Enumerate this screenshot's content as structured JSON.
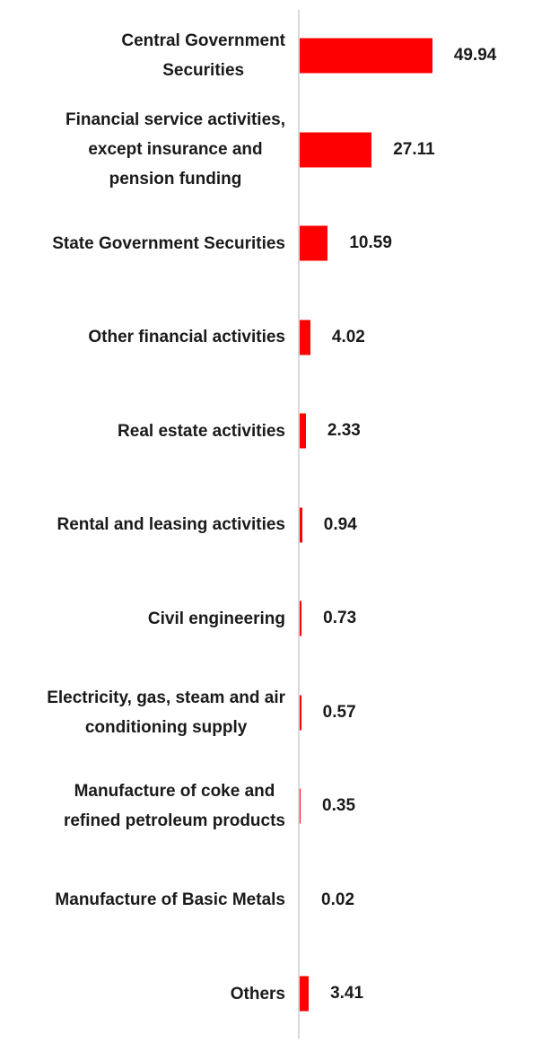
{
  "chart_data": {
    "type": "bar",
    "orientation": "horizontal",
    "title": "",
    "xlabel": "",
    "ylabel": "",
    "grid": false,
    "legend": false,
    "xlim": [
      0,
      55
    ],
    "bar_color": "#ff0000",
    "axis_line_color": "#d9d9d9",
    "text_color": "#1a1a1a",
    "background_color": "#ffffff",
    "categories": [
      "Central Government Securities",
      "Financial service activities, except insurance and pension funding",
      "State Government Securities",
      "Other financial activities",
      "Real estate activities",
      "Rental and leasing activities",
      "Civil engineering",
      "Electricity, gas, steam and air conditioning supply",
      "Manufacture of coke and refined petroleum products",
      "Manufacture of Basic Metals",
      "Others"
    ],
    "values": [
      49.94,
      27.11,
      10.59,
      4.02,
      2.33,
      0.94,
      0.73,
      0.57,
      0.35,
      0.02,
      3.41
    ],
    "value_labels": [
      "49.94",
      "27.11",
      "10.59",
      "4.02",
      "2.33",
      "0.94",
      "0.73",
      "0.57",
      "0.35",
      "0.02",
      "3.41"
    ],
    "label_lines": [
      [
        "Central Government",
        "Securities"
      ],
      [
        "Financial service activities,",
        "except insurance and",
        "pension funding"
      ],
      [
        "State Government Securities"
      ],
      [
        "Other financial activities"
      ],
      [
        "Real estate activities"
      ],
      [
        "Rental and leasing activities"
      ],
      [
        "Civil engineering"
      ],
      [
        "Electricity, gas, steam and air",
        "conditioning supply"
      ],
      [
        "Manufacture of coke and",
        "refined petroleum products"
      ],
      [
        "Manufacture of Basic Metals"
      ],
      [
        "Others"
      ]
    ]
  }
}
